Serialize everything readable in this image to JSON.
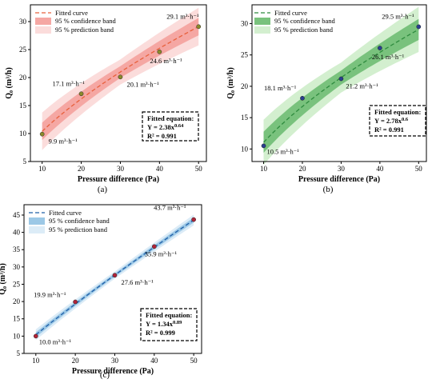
{
  "chart_data": [
    {
      "type": "scatter",
      "panel_label": "(a)",
      "xlabel": "Pressure difference (Pa)",
      "ylabel": "Q₀  (m³/h)",
      "xlim": [
        7,
        52
      ],
      "ylim": [
        5,
        33
      ],
      "xticks": [
        10,
        20,
        30,
        40,
        50
      ],
      "yticks": [
        5,
        10,
        15,
        20,
        25,
        30
      ],
      "points": {
        "x": [
          10,
          20,
          30,
          40,
          50
        ],
        "y": [
          9.9,
          17.1,
          20.1,
          24.6,
          29.1
        ]
      },
      "point_labels": [
        "9.9 m³·h⁻¹",
        "17.1 m³·h⁻¹",
        "20.1 m³·h⁻¹",
        "24.6 m³·h⁻¹",
        "29.1 m³·h⁻¹"
      ],
      "fit": {
        "a": 2.38,
        "b": 0.64
      },
      "conf_band": 1.3,
      "pred_band": 2.8,
      "legend": [
        "Fitted curve",
        "95 % confidence band",
        "95 % prediction band"
      ],
      "legend_position": "top-left",
      "equation": {
        "title": "Fitted equation:",
        "line1": "Y = 2.38x^0.64",
        "line2": "R² = 0.991"
      },
      "colors": {
        "curve": "#e8603c",
        "conf": "#f5a7a3",
        "pred": "#fbdcdb",
        "marker": "#8a8a2a"
      }
    },
    {
      "type": "scatter",
      "panel_label": "(b)",
      "xlabel": "Pressure difference (Pa)",
      "ylabel": "Q₀  (m³/h)",
      "xlim": [
        7,
        52
      ],
      "ylim": [
        8,
        33
      ],
      "xticks": [
        10,
        20,
        30,
        40,
        50
      ],
      "yticks": [
        10,
        15,
        20,
        25,
        30
      ],
      "points": {
        "x": [
          10,
          20,
          30,
          40,
          50
        ],
        "y": [
          10.5,
          18.1,
          21.2,
          26.1,
          29.5
        ]
      },
      "point_labels": [
        "10.5 m³·h⁻¹",
        "18.1 m³·h⁻¹",
        "21.2 m³·h⁻¹",
        "26.1 m³·h⁻¹",
        "29.5 m³·h⁻¹"
      ],
      "fit": {
        "a": 2.78,
        "b": 0.6
      },
      "conf_band": 1.4,
      "pred_band": 3.0,
      "legend": [
        "Fitted curve",
        "95 % confidence band",
        "95 % prediction band"
      ],
      "legend_position": "top-left",
      "equation": {
        "title": "Fitted equation:",
        "line1": "Y = 2.78x^0.6",
        "line2": "R² = 0.991"
      },
      "colors": {
        "curve": "#2e8b3e",
        "conf": "#79c27d",
        "pred": "#d3efcf",
        "marker": "#2a3f8f"
      }
    },
    {
      "type": "scatter",
      "panel_label": "(c)",
      "xlabel": "Pressure difference (Pa)",
      "ylabel": "Q₀  (m³/h)",
      "xlim": [
        7,
        52
      ],
      "ylim": [
        5,
        48
      ],
      "xticks": [
        10,
        20,
        30,
        40,
        50
      ],
      "yticks": [
        5,
        10,
        15,
        20,
        25,
        30,
        35,
        40,
        45
      ],
      "points": {
        "x": [
          10,
          20,
          30,
          40,
          50
        ],
        "y": [
          10.0,
          19.9,
          27.6,
          35.9,
          43.7
        ]
      },
      "point_labels": [
        "10.0 m³·h⁻¹",
        "19.9 m³·h⁻¹",
        "27.6 m³·h⁻¹",
        "35.9 m³·h⁻¹",
        "43.7 m³·h⁻¹"
      ],
      "fit": {
        "a": 1.34,
        "b": 0.89
      },
      "conf_band": 0.6,
      "pred_band": 1.3,
      "legend": [
        "Fitted curve",
        "95 % confidence band",
        "95 % prediction band"
      ],
      "legend_position": "top-left",
      "equation": {
        "title": "Fitted equation:",
        "line1": "Y = 1.34x^0.89",
        "line2": "R² = 0.999"
      },
      "colors": {
        "curve": "#1f5fa8",
        "conf": "#9cc8e6",
        "pred": "#dcecf7",
        "marker": "#b02438"
      }
    }
  ]
}
